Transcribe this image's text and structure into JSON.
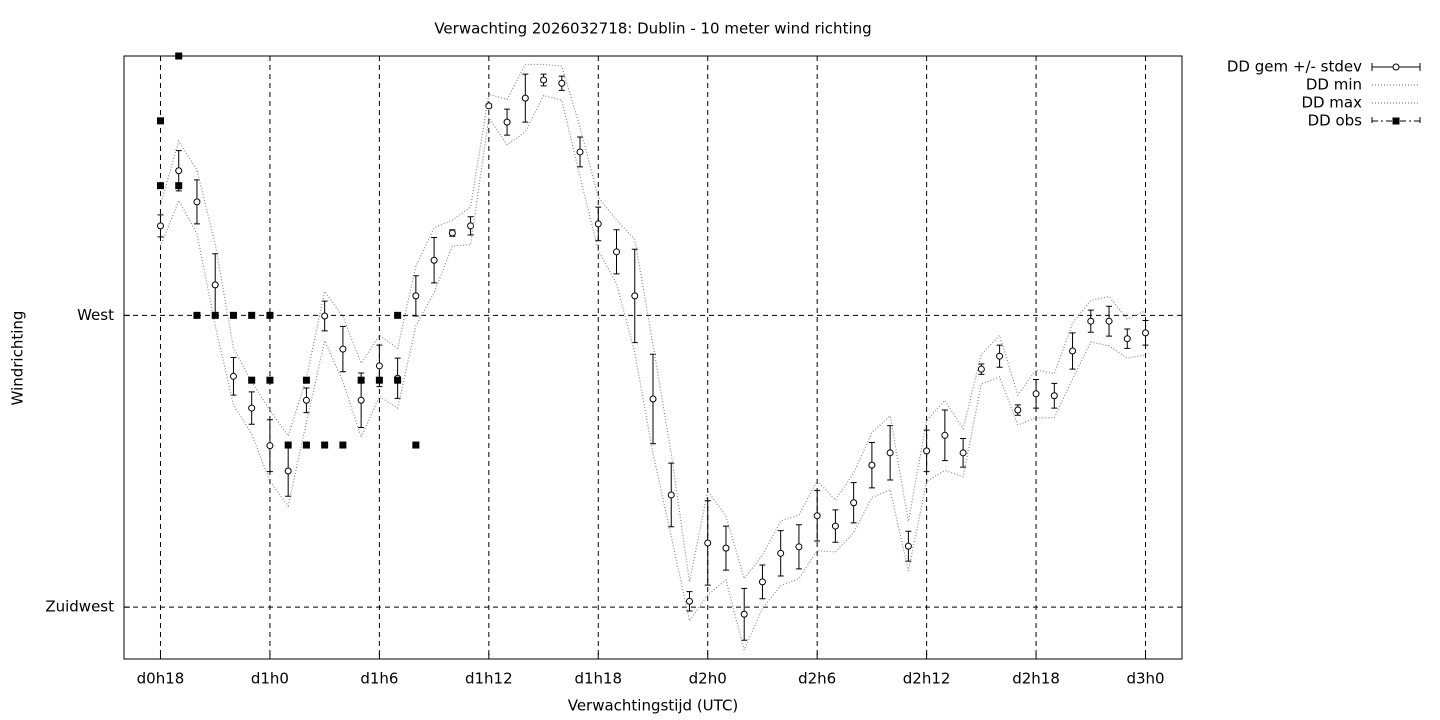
{
  "chart_data": {
    "type": "line",
    "title": "Verwachting 2026032718: Dublin - 10 meter wind richting",
    "x_label": "Verwachtingstijd (UTC)",
    "y_label": "Windrichting",
    "xlim": [
      16,
      74
    ],
    "xticks": [
      {
        "value": 18,
        "label": "d0h18"
      },
      {
        "value": 24,
        "label": "d1h0"
      },
      {
        "value": 30,
        "label": "d1h6"
      },
      {
        "value": 36,
        "label": "d1h12"
      },
      {
        "value": 42,
        "label": "d1h18"
      },
      {
        "value": 48,
        "label": "d2h0"
      },
      {
        "value": 54,
        "label": "d2h6"
      },
      {
        "value": 60,
        "label": "d2h12"
      },
      {
        "value": 66,
        "label": "d2h18"
      },
      {
        "value": 72,
        "label": "d3h0"
      }
    ],
    "ylim": [
      217,
      310
    ],
    "yticks": [
      {
        "value": 270,
        "label": "West"
      },
      {
        "value": 225,
        "label": "Zuidwest"
      }
    ],
    "grid": true,
    "x": [
      18,
      19,
      20,
      21,
      22,
      23,
      24,
      25,
      26,
      27,
      28,
      29,
      30,
      31,
      32,
      33,
      34,
      35,
      36,
      37,
      38,
      39,
      40,
      41,
      42,
      43,
      44,
      45,
      46,
      47,
      48,
      49,
      50,
      51,
      52,
      53,
      54,
      55,
      56,
      57,
      58,
      59,
      60,
      61,
      62,
      63,
      64,
      65,
      66,
      67,
      68,
      69,
      70,
      71,
      72
    ],
    "series": [
      {
        "name": "DD gem +/- stdev",
        "color": "#000000",
        "style": "errorbars",
        "values": [
          283.8,
          292.3,
          287.5,
          274.7,
          260.6,
          255.7,
          249.9,
          246.0,
          256.9,
          269.9,
          264.8,
          256.9,
          262.2,
          260.3,
          273.0,
          278.5,
          282.7,
          283.8,
          302.3,
          299.8,
          303.5,
          306.3,
          305.8,
          295.2,
          284.1,
          279.8,
          273.0,
          257.1,
          242.3,
          225.9,
          234.9,
          234.1,
          223.9,
          228.9,
          233.3,
          234.3,
          239.1,
          237.5,
          241.1,
          246.9,
          248.8,
          234.4,
          249.1,
          251.5,
          248.8,
          261.7,
          263.7,
          255.4,
          257.9,
          257.6,
          264.5,
          269.1,
          269.1,
          266.4,
          267.3
        ],
        "errors": [
          1.7,
          3.1,
          3.4,
          4.8,
          2.9,
          2.5,
          4.0,
          3.9,
          1.9,
          2.3,
          3.5,
          4.2,
          3.2,
          3.1,
          3.1,
          3.5,
          0.5,
          1.4,
          0.3,
          2.0,
          3.7,
          0.9,
          1.1,
          2.3,
          2.6,
          3.4,
          7.2,
          6.9,
          4.9,
          1.5,
          6.5,
          3.4,
          4.0,
          2.6,
          3.5,
          3.4,
          3.9,
          2.5,
          3.1,
          3.5,
          4.2,
          2.3,
          3.2,
          3.9,
          2.2,
          0.8,
          1.7,
          0.8,
          2.2,
          1.9,
          2.8,
          1.7,
          2.3,
          1.5,
          1.9
        ]
      },
      {
        "name": "DD min",
        "color": "#888888",
        "style": "dotted",
        "values": [
          280.6,
          287.7,
          282.6,
          268.4,
          256.2,
          251.7,
          244.4,
          240.6,
          253.5,
          266.1,
          259.8,
          251.2,
          257.5,
          255.7,
          268.4,
          273.5,
          280.7,
          280.9,
          300.5,
          296.3,
          298.3,
          303.9,
          303.2,
          291.4,
          280.0,
          274.9,
          264.3,
          248.7,
          235.9,
          222.9,
          226.9,
          229.2,
          218.4,
          224.8,
          228.3,
          229.4,
          233.7,
          233.5,
          236.5,
          241.9,
          243.1,
          230.6,
          244.4,
          246.1,
          245.1,
          259.4,
          260.5,
          253.1,
          254.2,
          254.2,
          260.2,
          265.9,
          265.3,
          263.4,
          263.9
        ]
      },
      {
        "name": "DD max",
        "color": "#888888",
        "style": "dotted",
        "values": [
          287.0,
          296.9,
          292.4,
          281.0,
          265.0,
          259.7,
          255.4,
          251.4,
          260.3,
          273.7,
          269.8,
          262.6,
          266.9,
          264.9,
          277.6,
          283.5,
          284.7,
          286.7,
          304.1,
          303.3,
          308.7,
          308.7,
          308.4,
          299.0,
          288.2,
          284.7,
          281.7,
          265.5,
          248.7,
          228.9,
          242.9,
          239.0,
          229.4,
          233.0,
          238.3,
          239.2,
          244.5,
          241.5,
          245.7,
          251.9,
          254.5,
          238.2,
          253.8,
          256.9,
          252.5,
          264.0,
          266.9,
          257.7,
          261.6,
          261.0,
          268.8,
          272.3,
          272.9,
          269.4,
          270.7
        ]
      },
      {
        "name": "DD obs",
        "color": "#000000",
        "style": "points",
        "x": [
          18,
          18,
          19,
          19,
          20,
          21,
          22,
          23,
          23,
          24,
          24,
          25,
          26,
          26,
          27,
          28,
          29,
          30,
          31,
          31,
          32
        ],
        "values": [
          300,
          290,
          310,
          290,
          270,
          270,
          270,
          270,
          260,
          270,
          260,
          250,
          250,
          260,
          250,
          250,
          260,
          260,
          260,
          270,
          250
        ]
      }
    ]
  }
}
